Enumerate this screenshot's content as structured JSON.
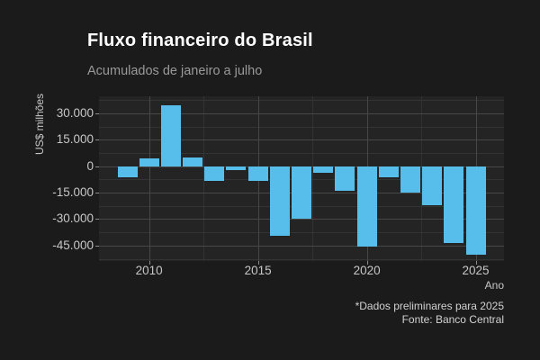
{
  "header": {
    "title": "Fluxo financeiro do Brasil",
    "subtitle": "Acumulados de janeiro a julho"
  },
  "chart_data": {
    "type": "bar",
    "title": "Fluxo financeiro do Brasil",
    "subtitle": "Acumulados de janeiro a julho",
    "xlabel": "Ano",
    "ylabel": "US$ milhões",
    "x": [
      2009,
      2010,
      2011,
      2012,
      2013,
      2014,
      2015,
      2016,
      2017,
      2018,
      2019,
      2020,
      2021,
      2022,
      2023,
      2024,
      2025
    ],
    "values": [
      -6500,
      4300,
      34500,
      4800,
      -8600,
      -2000,
      -8200,
      -39400,
      -30000,
      -4000,
      -13800,
      -45500,
      -6400,
      -15100,
      -22300,
      -43500,
      -50000
    ],
    "xlim": [
      2007.7,
      2026.3
    ],
    "ylim": [
      -53800,
      39700
    ],
    "x_major_ticks": [
      2010,
      2015,
      2020,
      2025
    ],
    "x_tick_labels": [
      "2010",
      "2015",
      "2020",
      "2025"
    ],
    "x_minor_ticks": [
      2012.5,
      2017.5,
      2022.5
    ],
    "y_major_ticks": [
      30000,
      15000,
      0,
      -15000,
      -30000,
      -45000
    ],
    "y_tick_labels": [
      "30.000",
      "15.000",
      "0",
      "-15.000",
      "-30.000",
      "-45.000"
    ],
    "y_minor_ticks": [
      37500,
      22500,
      7500,
      -7500,
      -22500,
      -37500,
      -52500
    ],
    "grid": "major+minor",
    "legend": "none",
    "bar_color": "#57beec",
    "panel_color": "#242424",
    "background_color": "#1b1b1b"
  },
  "caption": {
    "line1": "*Dados preliminares para 2025",
    "line2": "Fonte: Banco Central"
  }
}
